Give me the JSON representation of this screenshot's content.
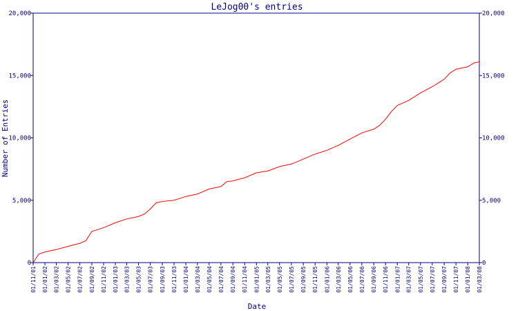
{
  "chart_data": {
    "type": "line",
    "title": "LeJog00's entries",
    "xlabel": "Date",
    "ylabel": "Number of Entries",
    "ylim": [
      0,
      20000
    ],
    "y_ticks": [
      "0",
      "5,000",
      "10,000",
      "15,000",
      "20,000"
    ],
    "y_tick_values": [
      0,
      5000,
      10000,
      15000,
      20000
    ],
    "x_ticks": [
      "01/11/01",
      "01/01/02",
      "01/03/02",
      "01/05/02",
      "01/07/02",
      "01/09/02",
      "01/11/02",
      "01/01/03",
      "01/03/03",
      "01/05/03",
      "01/07/03",
      "01/09/03",
      "01/11/03",
      "01/01/04",
      "01/03/04",
      "01/05/04",
      "01/07/04",
      "01/09/04",
      "01/11/04",
      "01/01/05",
      "01/03/05",
      "01/05/05",
      "01/07/05",
      "01/09/05",
      "01/11/05",
      "01/01/06",
      "01/03/06",
      "01/05/06",
      "01/07/06",
      "01/09/06",
      "01/11/06",
      "01/01/07",
      "01/03/07",
      "01/05/07",
      "01/07/07",
      "01/09/07",
      "01/11/07",
      "01/01/08",
      "01/03/08"
    ],
    "x_range": [
      "2001-11-01",
      "2008-03-01"
    ],
    "grid": false,
    "legend": "none",
    "series": [
      {
        "color": "#ff0000",
        "points": [
          [
            "2001-11-01",
            0
          ],
          [
            "2001-12-01",
            700
          ],
          [
            "2002-01-01",
            850
          ],
          [
            "2002-03-01",
            1050
          ],
          [
            "2002-05-01",
            1300
          ],
          [
            "2002-07-01",
            1550
          ],
          [
            "2002-08-01",
            1750
          ],
          [
            "2002-09-01",
            2500
          ],
          [
            "2002-11-01",
            2800
          ],
          [
            "2003-01-01",
            3200
          ],
          [
            "2003-03-01",
            3500
          ],
          [
            "2003-05-01",
            3700
          ],
          [
            "2003-06-01",
            3900
          ],
          [
            "2003-07-01",
            4300
          ],
          [
            "2003-08-01",
            4800
          ],
          [
            "2003-09-01",
            4900
          ],
          [
            "2003-11-01",
            5000
          ],
          [
            "2004-01-01",
            5300
          ],
          [
            "2004-03-01",
            5500
          ],
          [
            "2004-05-01",
            5900
          ],
          [
            "2004-07-01",
            6100
          ],
          [
            "2004-08-01",
            6500
          ],
          [
            "2004-09-01",
            6550
          ],
          [
            "2004-11-01",
            6800
          ],
          [
            "2005-01-01",
            7200
          ],
          [
            "2005-03-01",
            7350
          ],
          [
            "2005-05-01",
            7700
          ],
          [
            "2005-07-01",
            7900
          ],
          [
            "2005-09-01",
            8300
          ],
          [
            "2005-11-01",
            8700
          ],
          [
            "2006-01-01",
            9000
          ],
          [
            "2006-03-01",
            9400
          ],
          [
            "2006-05-01",
            9900
          ],
          [
            "2006-07-01",
            10400
          ],
          [
            "2006-09-01",
            10700
          ],
          [
            "2006-10-01",
            11000
          ],
          [
            "2006-11-01",
            11500
          ],
          [
            "2006-12-01",
            12100
          ],
          [
            "2007-01-01",
            12600
          ],
          [
            "2007-03-01",
            13000
          ],
          [
            "2007-05-01",
            13600
          ],
          [
            "2007-07-01",
            14100
          ],
          [
            "2007-09-01",
            14700
          ],
          [
            "2007-10-01",
            15200
          ],
          [
            "2007-11-01",
            15500
          ],
          [
            "2008-01-01",
            15700
          ],
          [
            "2008-02-01",
            16000
          ],
          [
            "2008-03-01",
            16100
          ]
        ]
      }
    ]
  }
}
